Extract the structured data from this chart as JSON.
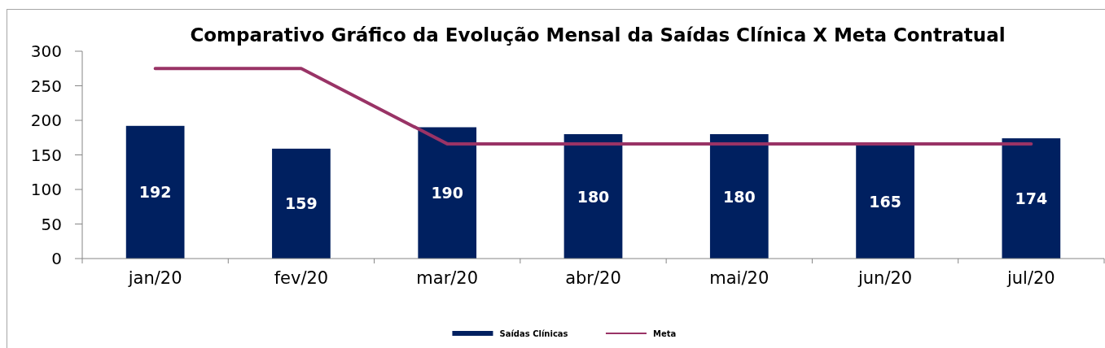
{
  "chart_data": {
    "type": "bar",
    "title": "Comparativo Gráfico da Evolução Mensal da Saídas Clínica X Meta Contratual",
    "categories": [
      "jan/20",
      "fev/20",
      "mar/20",
      "abr/20",
      "mai/20",
      "jun/20",
      "jul/20"
    ],
    "series": [
      {
        "name": "Saídas Clínicas",
        "color": "#002060",
        "values": [
          192,
          159,
          190,
          180,
          180,
          165,
          174
        ],
        "value_labels": [
          "192",
          "159",
          "190",
          "180",
          "180",
          "165",
          "174"
        ]
      },
      {
        "name": "Meta",
        "type": "line",
        "color": "#993366",
        "values": [
          275,
          275,
          166,
          166,
          166,
          166,
          166
        ]
      }
    ],
    "ylim": [
      0,
      300
    ],
    "yticks": [
      0,
      50,
      100,
      150,
      200,
      250,
      300
    ],
    "legend": "bottom"
  }
}
